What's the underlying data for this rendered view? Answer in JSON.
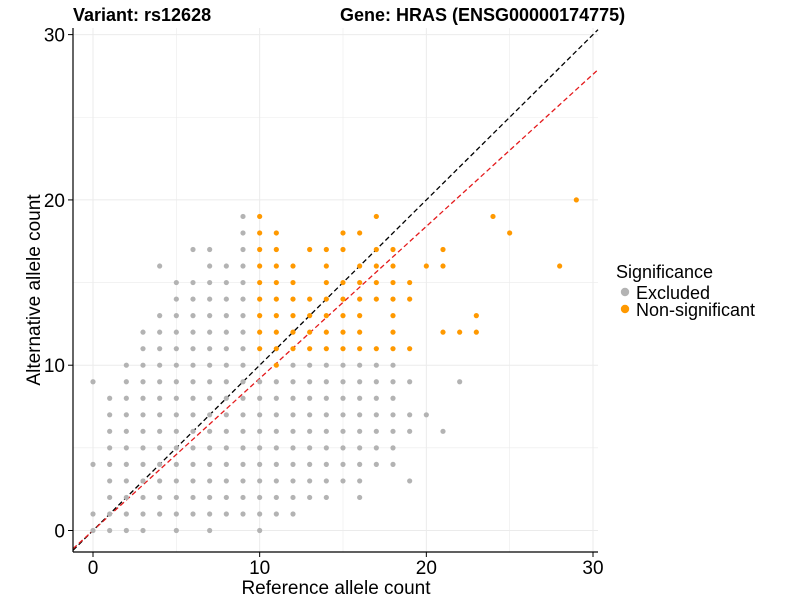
{
  "title": {
    "variant": "Variant: rs12628",
    "gene": "Gene: HRAS (ENSG00000174775)"
  },
  "legend": {
    "title": "Significance",
    "items": [
      {
        "label": "Excluded",
        "color": "#b3b3b3"
      },
      {
        "label": "Non-significant",
        "color": "#ff9900"
      }
    ]
  },
  "chart_data": {
    "type": "scatter",
    "xlabel": "Reference allele count",
    "ylabel": "Alternative allele count",
    "xlim": [
      -1.2,
      30.3
    ],
    "ylim": [
      -1.3,
      30.4
    ],
    "xticks": [
      0,
      10,
      20,
      30
    ],
    "yticks": [
      0,
      10,
      20,
      30
    ],
    "grid": true,
    "legend_position": "right",
    "reference_lines": [
      {
        "name": "identity",
        "slope": 1.0,
        "intercept": 0,
        "color": "#000000",
        "style": "dashed"
      },
      {
        "name": "fit",
        "slope": 0.92,
        "intercept": 0,
        "color": "#e41a1c",
        "style": "dashed"
      }
    ],
    "series": [
      {
        "name": "Excluded",
        "color": "#b3b3b3",
        "points": [
          [
            0,
            0
          ],
          [
            0,
            1
          ],
          [
            0,
            4
          ],
          [
            0,
            9
          ],
          [
            1,
            0
          ],
          [
            1,
            1
          ],
          [
            1,
            2
          ],
          [
            1,
            3
          ],
          [
            1,
            4
          ],
          [
            1,
            5
          ],
          [
            1,
            6
          ],
          [
            1,
            7
          ],
          [
            1,
            8
          ],
          [
            2,
            0
          ],
          [
            2,
            1
          ],
          [
            2,
            2
          ],
          [
            2,
            3
          ],
          [
            2,
            4
          ],
          [
            2,
            5
          ],
          [
            2,
            6
          ],
          [
            2,
            7
          ],
          [
            2,
            8
          ],
          [
            2,
            9
          ],
          [
            2,
            10
          ],
          [
            3,
            0
          ],
          [
            3,
            1
          ],
          [
            3,
            2
          ],
          [
            3,
            3
          ],
          [
            3,
            4
          ],
          [
            3,
            5
          ],
          [
            3,
            6
          ],
          [
            3,
            7
          ],
          [
            3,
            8
          ],
          [
            3,
            9
          ],
          [
            3,
            10
          ],
          [
            3,
            11
          ],
          [
            3,
            12
          ],
          [
            4,
            1
          ],
          [
            4,
            2
          ],
          [
            4,
            3
          ],
          [
            4,
            4
          ],
          [
            4,
            5
          ],
          [
            4,
            6
          ],
          [
            4,
            7
          ],
          [
            4,
            8
          ],
          [
            4,
            9
          ],
          [
            4,
            10
          ],
          [
            4,
            11
          ],
          [
            4,
            12
          ],
          [
            4,
            13
          ],
          [
            4,
            16
          ],
          [
            5,
            0
          ],
          [
            5,
            1
          ],
          [
            5,
            2
          ],
          [
            5,
            3
          ],
          [
            5,
            4
          ],
          [
            5,
            5
          ],
          [
            5,
            6
          ],
          [
            5,
            7
          ],
          [
            5,
            8
          ],
          [
            5,
            9
          ],
          [
            5,
            10
          ],
          [
            5,
            11
          ],
          [
            5,
            12
          ],
          [
            5,
            13
          ],
          [
            5,
            14
          ],
          [
            5,
            15
          ],
          [
            6,
            1
          ],
          [
            6,
            2
          ],
          [
            6,
            3
          ],
          [
            6,
            4
          ],
          [
            6,
            5
          ],
          [
            6,
            6
          ],
          [
            6,
            7
          ],
          [
            6,
            8
          ],
          [
            6,
            9
          ],
          [
            6,
            10
          ],
          [
            6,
            11
          ],
          [
            6,
            12
          ],
          [
            6,
            13
          ],
          [
            6,
            14
          ],
          [
            6,
            15
          ],
          [
            6,
            17
          ],
          [
            7,
            0
          ],
          [
            7,
            1
          ],
          [
            7,
            2
          ],
          [
            7,
            3
          ],
          [
            7,
            4
          ],
          [
            7,
            5
          ],
          [
            7,
            6
          ],
          [
            7,
            7
          ],
          [
            7,
            8
          ],
          [
            7,
            9
          ],
          [
            7,
            10
          ],
          [
            7,
            11
          ],
          [
            7,
            12
          ],
          [
            7,
            13
          ],
          [
            7,
            14
          ],
          [
            7,
            15
          ],
          [
            7,
            16
          ],
          [
            7,
            17
          ],
          [
            8,
            1
          ],
          [
            8,
            2
          ],
          [
            8,
            3
          ],
          [
            8,
            4
          ],
          [
            8,
            5
          ],
          [
            8,
            6
          ],
          [
            8,
            7
          ],
          [
            8,
            8
          ],
          [
            8,
            9
          ],
          [
            8,
            10
          ],
          [
            8,
            11
          ],
          [
            8,
            12
          ],
          [
            8,
            13
          ],
          [
            8,
            14
          ],
          [
            8,
            15
          ],
          [
            8,
            16
          ],
          [
            9,
            1
          ],
          [
            9,
            2
          ],
          [
            9,
            3
          ],
          [
            9,
            4
          ],
          [
            9,
            5
          ],
          [
            9,
            6
          ],
          [
            9,
            7
          ],
          [
            9,
            8
          ],
          [
            9,
            9
          ],
          [
            9,
            10
          ],
          [
            9,
            11
          ],
          [
            9,
            12
          ],
          [
            9,
            13
          ],
          [
            9,
            14
          ],
          [
            9,
            15
          ],
          [
            9,
            16
          ],
          [
            9,
            17
          ],
          [
            9,
            18
          ],
          [
            9,
            19
          ],
          [
            10,
            0
          ],
          [
            10,
            1
          ],
          [
            10,
            2
          ],
          [
            10,
            3
          ],
          [
            10,
            4
          ],
          [
            10,
            5
          ],
          [
            10,
            6
          ],
          [
            10,
            7
          ],
          [
            10,
            8
          ],
          [
            10,
            9
          ],
          [
            11,
            1
          ],
          [
            11,
            2
          ],
          [
            11,
            3
          ],
          [
            11,
            4
          ],
          [
            11,
            5
          ],
          [
            11,
            6
          ],
          [
            11,
            7
          ],
          [
            11,
            8
          ],
          [
            11,
            9
          ],
          [
            12,
            1
          ],
          [
            12,
            2
          ],
          [
            12,
            3
          ],
          [
            12,
            4
          ],
          [
            12,
            5
          ],
          [
            12,
            6
          ],
          [
            12,
            7
          ],
          [
            12,
            8
          ],
          [
            12,
            9
          ],
          [
            12,
            10
          ],
          [
            13,
            2
          ],
          [
            13,
            3
          ],
          [
            13,
            4
          ],
          [
            13,
            5
          ],
          [
            13,
            6
          ],
          [
            13,
            7
          ],
          [
            13,
            8
          ],
          [
            13,
            9
          ],
          [
            13,
            10
          ],
          [
            14,
            2
          ],
          [
            14,
            3
          ],
          [
            14,
            4
          ],
          [
            14,
            5
          ],
          [
            14,
            6
          ],
          [
            14,
            7
          ],
          [
            14,
            8
          ],
          [
            14,
            9
          ],
          [
            14,
            10
          ],
          [
            15,
            3
          ],
          [
            15,
            4
          ],
          [
            15,
            5
          ],
          [
            15,
            6
          ],
          [
            15,
            7
          ],
          [
            15,
            8
          ],
          [
            15,
            9
          ],
          [
            15,
            10
          ],
          [
            16,
            2
          ],
          [
            16,
            3
          ],
          [
            16,
            4
          ],
          [
            16,
            5
          ],
          [
            16,
            6
          ],
          [
            16,
            7
          ],
          [
            16,
            8
          ],
          [
            16,
            9
          ],
          [
            16,
            10
          ],
          [
            17,
            4
          ],
          [
            17,
            5
          ],
          [
            17,
            6
          ],
          [
            17,
            7
          ],
          [
            17,
            8
          ],
          [
            17,
            9
          ],
          [
            17,
            10
          ],
          [
            18,
            4
          ],
          [
            18,
            5
          ],
          [
            18,
            6
          ],
          [
            18,
            7
          ],
          [
            18,
            8
          ],
          [
            18,
            9
          ],
          [
            18,
            10
          ],
          [
            19,
            3
          ],
          [
            19,
            6
          ],
          [
            19,
            7
          ],
          [
            19,
            9
          ],
          [
            20,
            7
          ],
          [
            21,
            6
          ],
          [
            22,
            9
          ]
        ]
      },
      {
        "name": "Non-significant",
        "color": "#ff9900",
        "points": [
          [
            10,
            11
          ],
          [
            10,
            12
          ],
          [
            10,
            13
          ],
          [
            10,
            14
          ],
          [
            10,
            15
          ],
          [
            10,
            16
          ],
          [
            10,
            17
          ],
          [
            10,
            18
          ],
          [
            10,
            19
          ],
          [
            11,
            10
          ],
          [
            11,
            11
          ],
          [
            11,
            12
          ],
          [
            11,
            13
          ],
          [
            11,
            14
          ],
          [
            11,
            15
          ],
          [
            11,
            16
          ],
          [
            11,
            17
          ],
          [
            11,
            18
          ],
          [
            12,
            11
          ],
          [
            12,
            12
          ],
          [
            12,
            13
          ],
          [
            12,
            14
          ],
          [
            12,
            15
          ],
          [
            12,
            16
          ],
          [
            13,
            11
          ],
          [
            13,
            12
          ],
          [
            13,
            13
          ],
          [
            13,
            14
          ],
          [
            13,
            17
          ],
          [
            14,
            11
          ],
          [
            14,
            12
          ],
          [
            14,
            13
          ],
          [
            14,
            14
          ],
          [
            14,
            15
          ],
          [
            14,
            16
          ],
          [
            14,
            17
          ],
          [
            15,
            11
          ],
          [
            15,
            12
          ],
          [
            15,
            13
          ],
          [
            15,
            14
          ],
          [
            15,
            15
          ],
          [
            15,
            17
          ],
          [
            15,
            18
          ],
          [
            16,
            11
          ],
          [
            16,
            12
          ],
          [
            16,
            13
          ],
          [
            16,
            14
          ],
          [
            16,
            15
          ],
          [
            16,
            16
          ],
          [
            16,
            18
          ],
          [
            17,
            11
          ],
          [
            17,
            14
          ],
          [
            17,
            15
          ],
          [
            17,
            16
          ],
          [
            17,
            17
          ],
          [
            17,
            19
          ],
          [
            18,
            11
          ],
          [
            18,
            12
          ],
          [
            18,
            13
          ],
          [
            18,
            14
          ],
          [
            18,
            15
          ],
          [
            18,
            16
          ],
          [
            18,
            17
          ],
          [
            19,
            11
          ],
          [
            19,
            14
          ],
          [
            19,
            15
          ],
          [
            20,
            16
          ],
          [
            21,
            12
          ],
          [
            21,
            16
          ],
          [
            21,
            17
          ],
          [
            22,
            12
          ],
          [
            23,
            12
          ],
          [
            23,
            13
          ],
          [
            24,
            19
          ],
          [
            25,
            18
          ],
          [
            28,
            16
          ],
          [
            29,
            20
          ]
        ]
      }
    ]
  }
}
